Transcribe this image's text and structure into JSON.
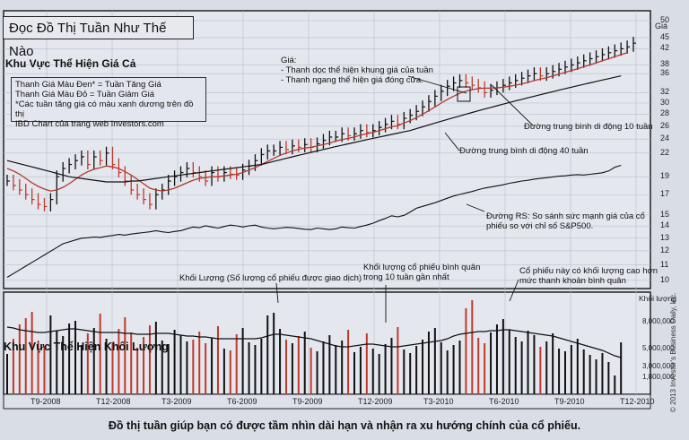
{
  "title": "Đọc Đồ Thị Tuần Như Thế Nào",
  "price_area_label": "Khu Vực Thể Hiện Giá Cả",
  "volume_area_label": "Khu Vực Thể Hiện Khối Lượng",
  "legend": {
    "line1": "Thanh Giá Màu Đen* = Tuần Tăng Giá",
    "line2": "Thanh Giá Màu Đỏ     = Tuần Giảm Giá",
    "line3": "*Các tuần tăng giá có màu xanh dương trên đồ thị",
    "line4": "IBD Chart của trang web Investors.com"
  },
  "annotations": {
    "price_title": "Giá:",
    "price_line1": "- Thanh dọc thể hiện khung giá của tuần",
    "price_line2": "- Thanh ngang thể hiện giá đóng cửa.",
    "ma10": "Đường trung bình di động 10 tuần",
    "ma40": "Đường trung bình di động 40 tuần",
    "rs_line1": "Đường RS: So sánh sức mạnh giá của cổ",
    "rs_line2": "phiếu so với chỉ số S&P500.",
    "volume": "Khối Lượng (Số lượng cổ phiếu được giao dịch)",
    "avgvol_line1": "Khối lượng cổ phiếu bình quân",
    "avgvol_line2": "trong 10 tuần gần nhất",
    "highvol_line1": "Cổ phiếu này có khối lượng cao hơn",
    "highvol_line2": "mức thanh khoản bình quân"
  },
  "caption": "Đồ thị tuần giúp bạn có được tầm nhìn dài hạn và nhận ra xu hướng chính của cổ phiếu.",
  "copyright": "© 2013 Investor's Business Daily, Inc.",
  "colors": {
    "up": "#111111",
    "down": "#c0392b",
    "ma10": "#b03a2e",
    "line": "#111111",
    "grid": "#b8bfcc",
    "panel": "#e4e7ee"
  },
  "chart_data": {
    "type": "line",
    "price_axis_label": "Giá",
    "price_ticks": [
      50,
      45,
      42,
      38,
      36,
      32,
      30,
      28,
      26,
      24,
      22,
      19,
      17,
      15,
      14,
      13,
      12,
      11,
      10
    ],
    "volume_axis_label": "Khối lượng",
    "volume_ticks": [
      "8,000,000",
      "5,000,000",
      "3,000,000",
      "1,800,000"
    ],
    "x_ticks": [
      "T9-2008",
      "T12-2008",
      "T3-2009",
      "T6-2009",
      "T9-2009",
      "T12-2009",
      "T3-2010",
      "T6-2010",
      "T9-2010",
      "T12-2010"
    ],
    "weekly_close": [
      18.5,
      18,
      17.5,
      17,
      16.5,
      16,
      15.8,
      16.5,
      19,
      20,
      20.5,
      21,
      21.5,
      20.5,
      21.5,
      21,
      22,
      20.5,
      19.5,
      18.5,
      17.5,
      17,
      16.5,
      16,
      17,
      17.5,
      18.5,
      19,
      19.5,
      20,
      19.5,
      19,
      18.5,
      19.5,
      19,
      19.5,
      19.3,
      19.2,
      19.8,
      20.3,
      21,
      21.8,
      22.3,
      22.3,
      22.8,
      22.5,
      23,
      22.8,
      23.2,
      22.8,
      23.3,
      23.8,
      24.3,
      24.3,
      24.8,
      24.5,
      24.8,
      25.3,
      25,
      25.3,
      25.8,
      26.3,
      26.8,
      26.3,
      27.3,
      27.8,
      28.5,
      29.3,
      30.3,
      31.3,
      32.3,
      33.3,
      34,
      34.5,
      34,
      33.5,
      33,
      32,
      32.5,
      33,
      33.5,
      34,
      34.5,
      35,
      35.5,
      36,
      35.5,
      36,
      36.5,
      37,
      37.5,
      38,
      38.5,
      39,
      39.5,
      40,
      40.5,
      41,
      41.5,
      42,
      42.5,
      43.5
    ],
    "ma10": [
      20,
      19.7,
      19.3,
      18.8,
      18.3,
      17.9,
      17.6,
      17.4,
      17.5,
      17.8,
      18.2,
      18.7,
      19.2,
      19.6,
      19.9,
      20.1,
      20.3,
      20.2,
      20,
      19.6,
      19.2,
      18.7,
      18.2,
      17.7,
      17.5,
      17.4,
      17.5,
      17.7,
      18,
      18.3,
      18.6,
      18.8,
      18.9,
      19,
      19,
      19.1,
      19.2,
      19.3,
      19.5,
      19.8,
      20.1,
      20.5,
      20.9,
      21.3,
      21.7,
      22,
      22.3,
      22.5,
      22.7,
      22.8,
      23,
      23.2,
      23.4,
      23.7,
      23.9,
      24.1,
      24.3,
      24.6,
      24.8,
      25,
      25.3,
      25.6,
      25.9,
      26.1,
      26.5,
      26.9,
      27.4,
      28,
      28.6,
      29.3,
      30,
      30.7,
      31.3,
      31.9,
      32.3,
      32.6,
      32.8,
      32.9,
      32.9,
      33,
      33.1,
      33.3,
      33.5,
      33.8,
      34.1,
      34.5,
      34.8,
      35.1,
      35.5,
      35.9,
      36.3,
      36.7,
      37.1,
      37.6,
      38,
      38.5,
      39,
      39.5,
      40,
      40.5,
      41
    ],
    "ma40": [
      21,
      20.8,
      20.6,
      20.4,
      20.2,
      20,
      19.8,
      19.6,
      19.4,
      19.2,
      19,
      18.9,
      18.8,
      18.7,
      18.6,
      18.5,
      18.4,
      18.4,
      18.4,
      18.4,
      18.5,
      18.5,
      18.6,
      18.7,
      18.8,
      18.9,
      19,
      19.1,
      19.2,
      19.3,
      19.4,
      19.5,
      19.6,
      19.7,
      19.8,
      19.9,
      20,
      20.1,
      20.2,
      20.3,
      20.4,
      20.5,
      20.7,
      20.9,
      21.1,
      21.3,
      21.5,
      21.7,
      21.9,
      22.1,
      22.3,
      22.5,
      22.7,
      22.9,
      23.1,
      23.3,
      23.5,
      23.7,
      23.9,
      24.1,
      24.3,
      24.5,
      24.7,
      24.9,
      25.1,
      25.3,
      25.6,
      25.9,
      26.2,
      26.5,
      26.8,
      27.1,
      27.4,
      27.7,
      28,
      28.3,
      28.6,
      28.9,
      29.2,
      29.5,
      29.8,
      30.1,
      30.4,
      30.7,
      31,
      31.3,
      31.6,
      31.9,
      32.2,
      32.5,
      32.8,
      33.1,
      33.4,
      33.7,
      34,
      34.3,
      34.6,
      34.9,
      35.2,
      35.5
    ],
    "rs_line": [
      3,
      4,
      5,
      6,
      7,
      8,
      9,
      10,
      11,
      12,
      12.5,
      13,
      13.5,
      13.6,
      13.8,
      13.7,
      14,
      14.2,
      14.5,
      14.3,
      14.6,
      14.8,
      15,
      15.2,
      15.5,
      15.2,
      15,
      15.3,
      15.5,
      16,
      16.5,
      16.3,
      16.8,
      16.5,
      16.2,
      16.6,
      17,
      16.8,
      16.5,
      16.8,
      17,
      16.5,
      16.2,
      16,
      16.2,
      16.4,
      16.3,
      16.1,
      15.9,
      15.8,
      16.2,
      16,
      15.8,
      16,
      16.5,
      16.3,
      16.2,
      16.6,
      17,
      17.5,
      18.2,
      18.8,
      19.5,
      19.2,
      19.6,
      20.5,
      21.5,
      22,
      22.5,
      23,
      23.6,
      24.2,
      24.8,
      25.2,
      25.6,
      26,
      26.5,
      26.9,
      27.2,
      27.5,
      27.8,
      28.2,
      28.5,
      28.8,
      29,
      29.3,
      29.5,
      29.7,
      29.9,
      30.1,
      30.2,
      30.4,
      30.5,
      30.4,
      30.6,
      30.8,
      31,
      31.5,
      32.5,
      33
    ],
    "weekly_volume_millions": [
      4.5,
      6.2,
      7.8,
      8.5,
      9.2,
      6.0,
      5.4,
      8.8,
      7.1,
      6.5,
      7.9,
      8.2,
      5.5,
      6.8,
      7.4,
      9.0,
      6.2,
      5.8,
      7.3,
      8.6,
      6.9,
      5.2,
      6.4,
      7.7,
      8.1,
      6.0,
      5.6,
      7.2,
      6.6,
      5.9,
      6.1,
      7.0,
      5.7,
      6.3,
      7.6,
      5.1,
      4.9,
      6.7,
      7.4,
      5.8,
      5.5,
      6.2,
      8.8,
      9.1,
      7.3,
      6.1,
      5.7,
      6.5,
      7.0,
      5.2,
      4.8,
      5.9,
      6.6,
      5.5,
      6.0,
      7.2,
      4.7,
      5.3,
      6.8,
      5.1,
      4.5,
      5.6,
      6.3,
      7.5,
      5.0,
      4.6,
      5.4,
      6.1,
      7.0,
      7.4,
      5.8,
      4.9,
      5.5,
      6.0,
      9.6,
      10.5,
      6.3,
      5.7,
      6.9,
      7.8,
      8.4,
      7.2,
      6.4,
      5.9,
      7.1,
      6.6,
      5.3,
      5.9,
      6.8,
      5.1,
      4.8,
      5.5,
      6.2,
      5.0,
      4.4,
      3.9,
      4.6,
      3.6,
      2.1,
      5.8
    ],
    "avg_volume_10w_millions": [
      7.5,
      7.4,
      7.2,
      7.1,
      7.0,
      6.9,
      6.9,
      7.0,
      7.1,
      7.2,
      7.3,
      7.3,
      7.2,
      7.1,
      7.0,
      6.9,
      6.9,
      6.9,
      6.9,
      6.8,
      6.8,
      6.7,
      6.7,
      6.7,
      6.8,
      6.8,
      6.8,
      6.7,
      6.6,
      6.5,
      6.5,
      6.4,
      6.4,
      6.3,
      6.2,
      6.2,
      6.2,
      6.2,
      6.2,
      6.2,
      6.2,
      6.3,
      6.5,
      6.7,
      6.7,
      6.6,
      6.5,
      6.4,
      6.3,
      6.2,
      6.0,
      5.8,
      5.6,
      5.4,
      5.3,
      5.3,
      5.4,
      5.5,
      5.6,
      5.6,
      5.5,
      5.4,
      5.3,
      5.3,
      5.4,
      5.5,
      5.6,
      5.7,
      5.8,
      5.9,
      6.0,
      6.2,
      6.5,
      6.7,
      6.8,
      6.9,
      7.0,
      7.0,
      7.1,
      7.1,
      7.2,
      7.2,
      7.1,
      7.0,
      6.9,
      6.8,
      6.7,
      6.6,
      6.5,
      6.3,
      6.1,
      5.9,
      5.7,
      5.5,
      5.3,
      5.1,
      4.9,
      4.6,
      4.3,
      4.1
    ]
  }
}
